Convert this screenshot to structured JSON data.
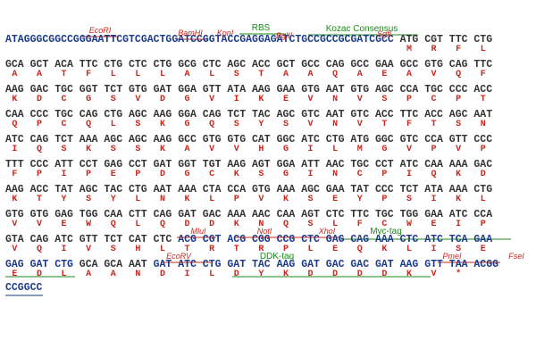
{
  "rows": [
    {
      "prefix": "ATAGGGCGGCCGGGAATTCGTCGACTGGATCCGGTACCGAGGAGATCTGCCGCCGCGATCGCC",
      "codons": [
        "ATG",
        "CGT",
        "TTC",
        "CTG"
      ],
      "residues": [
        "M",
        "R",
        "F",
        "L"
      ],
      "annotations": [
        "EcoRI",
        "BamHI",
        "KpnI",
        "RBS",
        "BglII",
        "Kozac Consensus",
        "SgfI"
      ]
    },
    {
      "codons": [
        "GCA",
        "GCT",
        "ACA",
        "TTC",
        "CTG",
        "CTC",
        "CTG",
        "GCG",
        "CTC",
        "AGC",
        "ACC",
        "GCT",
        "GCC",
        "CAG",
        "GCC",
        "GAA",
        "GCC",
        "GTG",
        "CAG",
        "TTC"
      ],
      "residues": [
        "A",
        "A",
        "T",
        "F",
        "L",
        "L",
        "L",
        "A",
        "L",
        "S",
        "T",
        "A",
        "A",
        "Q",
        "A",
        "E",
        "A",
        "V",
        "Q",
        "F"
      ]
    },
    {
      "codons": [
        "AAG",
        "GAC",
        "TGC",
        "GGT",
        "TCT",
        "GTG",
        "GAT",
        "GGA",
        "GTT",
        "ATA",
        "AAG",
        "GAA",
        "GTG",
        "AAT",
        "GTG",
        "AGC",
        "CCA",
        "TGC",
        "CCC",
        "ACC"
      ],
      "residues": [
        "K",
        "D",
        "C",
        "G",
        "S",
        "V",
        "D",
        "G",
        "V",
        "I",
        "K",
        "E",
        "V",
        "N",
        "V",
        "S",
        "P",
        "C",
        "P",
        "T"
      ]
    },
    {
      "codons": [
        "CAA",
        "CCC",
        "TGC",
        "CAG",
        "CTG",
        "AGC",
        "AAG",
        "GGA",
        "CAG",
        "TCT",
        "TAC",
        "AGC",
        "GTC",
        "AAT",
        "GTC",
        "ACC",
        "TTC",
        "ACC",
        "AGC",
        "AAT"
      ],
      "residues": [
        "Q",
        "P",
        "C",
        "Q",
        "L",
        "S",
        "K",
        "G",
        "Q",
        "S",
        "Y",
        "S",
        "V",
        "N",
        "V",
        "T",
        "F",
        "T",
        "S",
        "N"
      ]
    },
    {
      "codons": [
        "ATC",
        "CAG",
        "TCT",
        "AAA",
        "AGC",
        "AGC",
        "AAG",
        "GCC",
        "GTG",
        "GTG",
        "CAT",
        "GGC",
        "ATC",
        "CTG",
        "ATG",
        "GGC",
        "GTC",
        "CCA",
        "GTT",
        "CCC"
      ],
      "residues": [
        "I",
        "Q",
        "S",
        "K",
        "S",
        "S",
        "K",
        "A",
        "V",
        "V",
        "H",
        "G",
        "I",
        "L",
        "M",
        "G",
        "V",
        "P",
        "V",
        "P"
      ]
    },
    {
      "codons": [
        "TTT",
        "CCC",
        "ATT",
        "CCT",
        "GAG",
        "CCT",
        "GAT",
        "GGT",
        "TGT",
        "AAG",
        "AGT",
        "GGA",
        "ATT",
        "AAC",
        "TGC",
        "CCT",
        "ATC",
        "CAA",
        "AAA",
        "GAC"
      ],
      "residues": [
        "F",
        "P",
        "I",
        "P",
        "E",
        "P",
        "D",
        "G",
        "C",
        "K",
        "S",
        "G",
        "I",
        "N",
        "C",
        "P",
        "I",
        "Q",
        "K",
        "D"
      ]
    },
    {
      "codons": [
        "AAG",
        "ACC",
        "TAT",
        "AGC",
        "TAC",
        "CTG",
        "AAT",
        "AAA",
        "CTA",
        "CCA",
        "GTG",
        "AAA",
        "AGC",
        "GAA",
        "TAT",
        "CCC",
        "TCT",
        "ATA",
        "AAA",
        "CTG"
      ],
      "residues": [
        "K",
        "T",
        "Y",
        "S",
        "Y",
        "L",
        "N",
        "K",
        "L",
        "P",
        "V",
        "K",
        "S",
        "E",
        "Y",
        "P",
        "S",
        "I",
        "K",
        "L"
      ]
    },
    {
      "codons": [
        "GTG",
        "GTG",
        "GAG",
        "TGG",
        "CAA",
        "CTT",
        "CAG",
        "GAT",
        "GAC",
        "AAA",
        "AAC",
        "CAA",
        "AGT",
        "CTC",
        "TTC",
        "TGC",
        "TGG",
        "GAA",
        "ATC",
        "CCA"
      ],
      "residues": [
        "V",
        "V",
        "E",
        "W",
        "Q",
        "L",
        "Q",
        "D",
        "D",
        "K",
        "N",
        "Q",
        "S",
        "L",
        "F",
        "C",
        "W",
        "E",
        "I",
        "P"
      ]
    },
    {
      "codons": [
        "GTA",
        "CAG",
        "ATC",
        "GTT",
        "TCT",
        "CAT",
        "CTC",
        "ACG",
        "CGT",
        "ACG",
        "CGG",
        "CCG",
        "CTC",
        "GAG",
        "CAG",
        "AAA",
        "CTC",
        "ATC",
        "TCA",
        "GAA"
      ],
      "residues": [
        "V",
        "Q",
        "I",
        "V",
        "S",
        "H",
        "L",
        "T",
        "R",
        "T",
        "R",
        "P",
        "L",
        "E",
        "Q",
        "K",
        "L",
        "I",
        "S",
        "E"
      ],
      "annotations": [
        "MluI",
        "NotI",
        "XhoI",
        "Myc-tag"
      ]
    },
    {
      "codons": [
        "GAG",
        "GAT",
        "CTG",
        "GCA",
        "GCA",
        "AAT",
        "GAT",
        "ATC",
        "CTG",
        "GAT",
        "TAC",
        "AAG",
        "GAT",
        "GAC",
        "GAC",
        "GAT",
        "AAG",
        "GTT",
        "TAA",
        "ACGG"
      ],
      "residues": [
        "E",
        "D",
        "L",
        "A",
        "A",
        "N",
        "D",
        "I",
        "L",
        "D",
        "Y",
        "K",
        "D",
        "D",
        "D",
        "D",
        "K",
        "V",
        "*"
      ],
      "annotations": [
        "EcoRV",
        "DDK-tag",
        "PmeI",
        "FseI"
      ]
    },
    {
      "codons": [
        "CCGGCC"
      ]
    }
  ]
}
